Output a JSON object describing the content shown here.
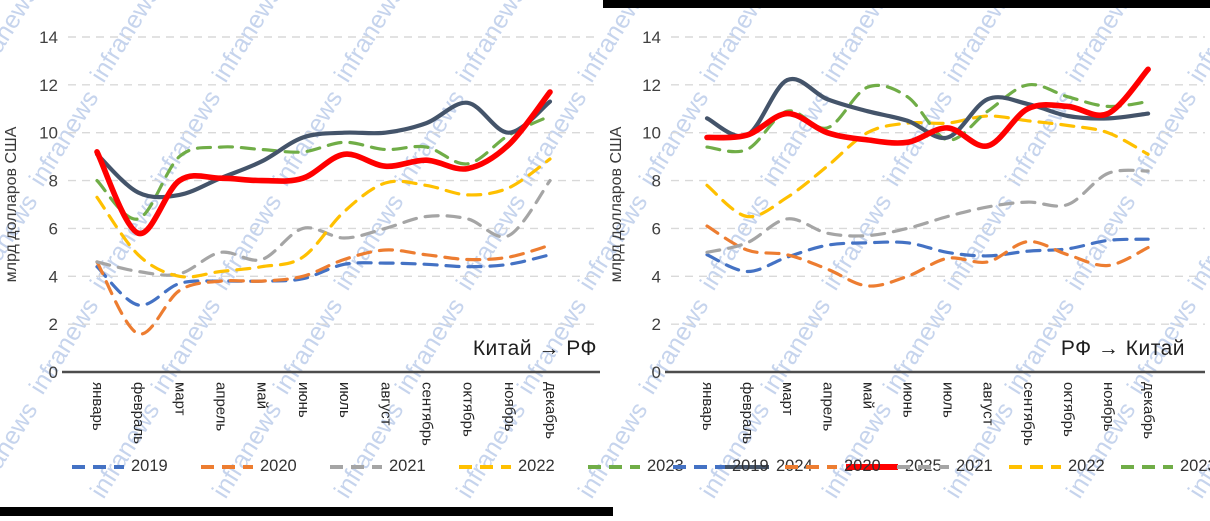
{
  "watermark": {
    "text": "infranews"
  },
  "accent_colors": {
    "y2019": "#4472C4",
    "y2020": "#ED7D31",
    "y2021": "#A5A5A5",
    "y2022": "#FFC000",
    "y2023": "#70AD47",
    "y2024": "#44546A",
    "y2025": "#FF0000",
    "gridline": "#d9d9d9",
    "axis": "#4d4d4d"
  },
  "chart_data": [
    {
      "type": "line",
      "title": "Китай → РФ",
      "ylabel": "млрд долларов США",
      "ylim": [
        0,
        14
      ],
      "ytick_step": 2,
      "grid": true,
      "legend_position": "bottom",
      "categories": [
        "январь",
        "февраль",
        "март",
        "апрель",
        "май",
        "июнь",
        "июль",
        "август",
        "сентябрь",
        "октябрь",
        "ноябрь",
        "декабрь"
      ],
      "series": [
        {
          "name": "2019",
          "color": "#4472C4",
          "dash": true,
          "values": [
            4.4,
            2.8,
            3.7,
            3.8,
            3.8,
            3.9,
            4.5,
            4.55,
            4.5,
            4.4,
            4.5,
            4.9
          ]
        },
        {
          "name": "2020",
          "color": "#ED7D31",
          "dash": true,
          "values": [
            4.6,
            1.6,
            3.4,
            3.8,
            3.8,
            4.0,
            4.7,
            5.1,
            4.9,
            4.7,
            4.8,
            5.3
          ]
        },
        {
          "name": "2021",
          "color": "#A5A5A5",
          "dash": true,
          "values": [
            4.6,
            4.2,
            4.1,
            5.0,
            4.7,
            6.0,
            5.6,
            6.0,
            6.5,
            6.4,
            5.7,
            8.0
          ]
        },
        {
          "name": "2022",
          "color": "#FFC000",
          "dash": true,
          "values": [
            7.3,
            4.9,
            4.0,
            4.2,
            4.4,
            4.8,
            6.7,
            7.9,
            7.8,
            7.4,
            7.7,
            8.9
          ]
        },
        {
          "name": "2023",
          "color": "#70AD47",
          "dash": true,
          "values": [
            8.0,
            6.4,
            9.0,
            9.4,
            9.3,
            9.2,
            9.6,
            9.3,
            9.4,
            8.7,
            9.9,
            10.7
          ]
        },
        {
          "name": "2024",
          "color": "#44546A",
          "dash": false,
          "values": [
            9.1,
            7.5,
            7.4,
            8.1,
            8.8,
            9.8,
            10.0,
            10.0,
            10.4,
            11.25,
            10.0,
            11.3
          ]
        },
        {
          "name": "2025",
          "color": "#FF0000",
          "dash": false,
          "values": [
            9.2,
            5.8,
            8.0,
            8.1,
            8.0,
            8.1,
            9.1,
            8.6,
            8.85,
            8.5,
            9.5,
            11.7
          ]
        }
      ]
    },
    {
      "type": "line",
      "title": "РФ → Китай",
      "ylabel": "млрд долларов США",
      "ylim": [
        0,
        14
      ],
      "ytick_step": 2,
      "grid": true,
      "legend_position": "bottom",
      "categories": [
        "январь",
        "февраль",
        "март",
        "апрель",
        "май",
        "июнь",
        "июль",
        "август",
        "сентябрь",
        "октябрь",
        "ноябрь",
        "декабрь"
      ],
      "series": [
        {
          "name": "2019",
          "color": "#4472C4",
          "dash": true,
          "values": [
            4.9,
            4.2,
            4.8,
            5.3,
            5.4,
            5.4,
            5.0,
            4.85,
            5.05,
            5.15,
            5.5,
            5.55
          ]
        },
        {
          "name": "2020",
          "color": "#ED7D31",
          "dash": true,
          "values": [
            6.1,
            5.1,
            4.9,
            4.3,
            3.6,
            4.0,
            4.75,
            4.6,
            5.45,
            4.9,
            4.45,
            5.2
          ]
        },
        {
          "name": "2021",
          "color": "#A5A5A5",
          "dash": true,
          "values": [
            5.0,
            5.4,
            6.4,
            5.8,
            5.7,
            6.0,
            6.5,
            6.9,
            7.1,
            7.0,
            8.3,
            8.4
          ]
        },
        {
          "name": "2022",
          "color": "#FFC000",
          "dash": true,
          "values": [
            7.8,
            6.5,
            7.3,
            8.6,
            10.0,
            10.4,
            10.4,
            10.7,
            10.5,
            10.3,
            10.0,
            9.1
          ]
        },
        {
          "name": "2023",
          "color": "#70AD47",
          "dash": true,
          "values": [
            9.4,
            9.3,
            10.9,
            10.2,
            11.9,
            11.5,
            9.7,
            10.9,
            12.0,
            11.5,
            11.1,
            11.3
          ]
        },
        {
          "name": "2024",
          "color": "#44546A",
          "dash": false,
          "values": [
            10.6,
            9.9,
            12.2,
            11.4,
            10.9,
            10.5,
            9.8,
            11.4,
            11.2,
            10.7,
            10.6,
            10.8
          ]
        },
        {
          "name": "2025",
          "color": "#FF0000",
          "dash": false,
          "values": [
            9.8,
            9.9,
            10.8,
            10.0,
            9.7,
            9.6,
            10.2,
            9.45,
            11.0,
            11.1,
            10.8,
            12.65
          ]
        }
      ]
    }
  ]
}
